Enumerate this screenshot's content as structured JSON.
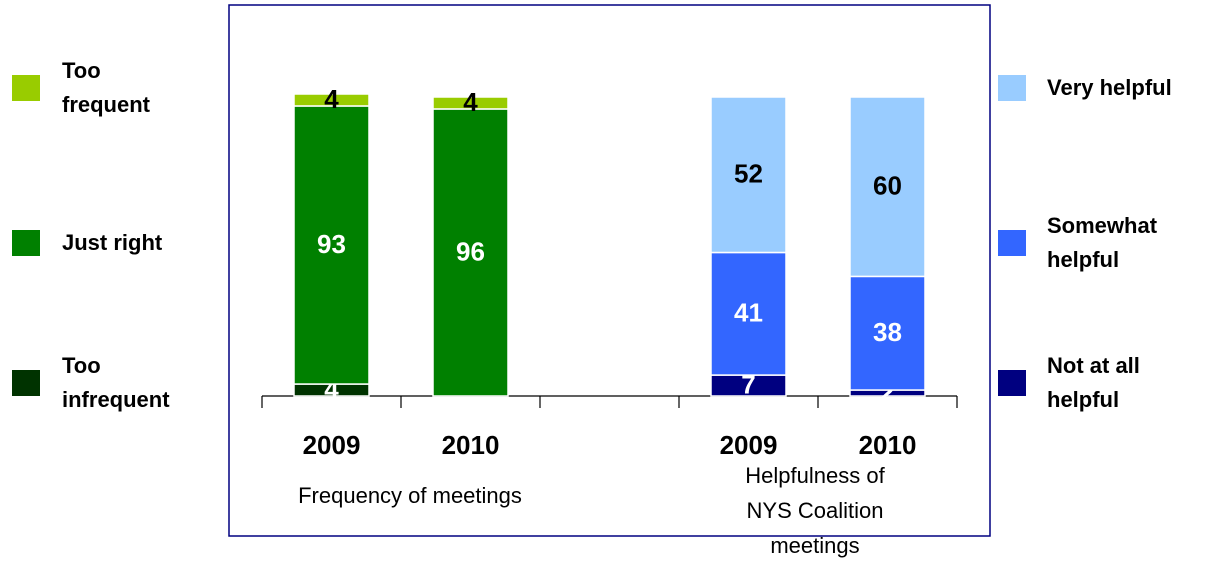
{
  "chart_data": [
    {
      "type": "stacked_bar",
      "xlabel": "Frequency of meetings",
      "legend": "left",
      "categories": [
        "2009",
        "2010"
      ],
      "ylim": [
        0,
        100
      ],
      "series": [
        {
          "name": "Too infrequent",
          "color": "#003300",
          "values": [
            4,
            null
          ]
        },
        {
          "name": "Just right",
          "color": "#008000",
          "values": [
            93,
            96
          ]
        },
        {
          "name": "Too frequent",
          "color": "#99cc00",
          "values": [
            4,
            4
          ]
        }
      ]
    },
    {
      "type": "stacked_bar",
      "xlabel": "Helpfulness of NYS Coalition meetings",
      "legend": "right",
      "categories": [
        "2009",
        "2010"
      ],
      "ylim": [
        0,
        100
      ],
      "series": [
        {
          "name": "Not at all helpful",
          "color": "#000080",
          "values": [
            7,
            2
          ]
        },
        {
          "name": "Somewhat helpful",
          "color": "#3366ff",
          "values": [
            41,
            38
          ]
        },
        {
          "name": "Very helpful",
          "color": "#99ccff",
          "values": [
            52,
            60
          ]
        }
      ]
    }
  ]
}
